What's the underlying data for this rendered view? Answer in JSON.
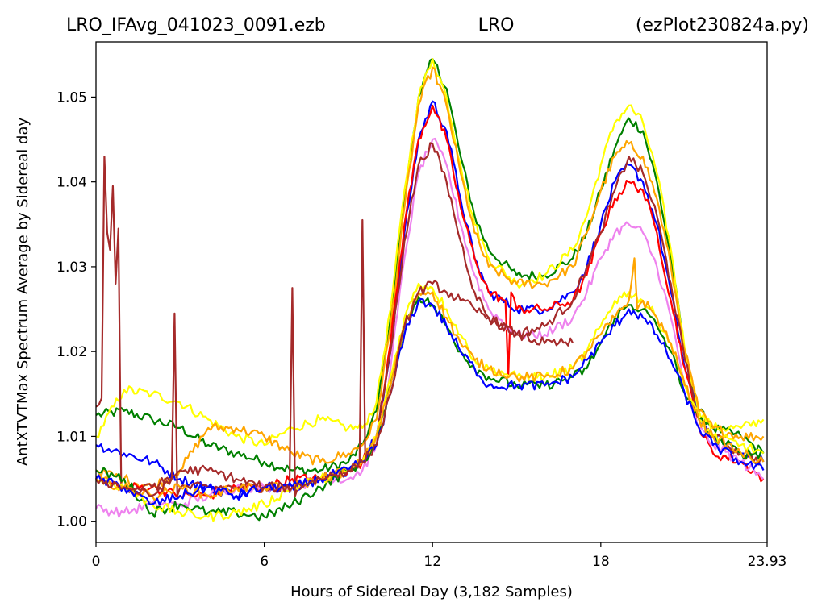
{
  "chart_data": {
    "type": "line",
    "title_left": "LRO_IFAvg_041023_0091.ezb",
    "title_center": "LRO",
    "title_right": "(ezPlot230824a.py)",
    "xlabel": "Hours of Sidereal Day  (3,182 Samples)",
    "ylabel": "AntXTVTMax Spectrum Average by Sidereal day",
    "xlim": [
      0,
      23.93
    ],
    "ylim": [
      0.9975,
      1.0565
    ],
    "xticks": [
      0,
      6,
      12,
      18,
      23.93
    ],
    "xtick_labels": [
      "0",
      "6",
      "12",
      "18",
      "23.93"
    ],
    "yticks": [
      1.0,
      1.01,
      1.02,
      1.03,
      1.04,
      1.05
    ],
    "ytick_labels": [
      "1.00",
      "1.01",
      "1.02",
      "1.03",
      "1.04",
      "1.05"
    ],
    "grid": false,
    "series": [
      {
        "color": "#008000",
        "x": [
          0,
          1,
          2,
          3,
          4,
          5,
          6,
          7,
          8,
          9,
          9.5,
          10,
          10.5,
          11,
          11.5,
          12,
          12.5,
          13,
          13.5,
          14,
          15,
          16,
          17,
          17.5,
          18,
          18.5,
          19,
          19.5,
          20,
          20.5,
          21,
          21.5,
          22,
          23,
          23.8
        ],
        "y": [
          1.0125,
          1.013,
          1.012,
          1.011,
          1.009,
          1.008,
          1.007,
          1.006,
          1.006,
          1.007,
          1.009,
          1.013,
          1.024,
          1.038,
          1.05,
          1.0545,
          1.051,
          1.043,
          1.036,
          1.032,
          1.029,
          1.029,
          1.031,
          1.034,
          1.039,
          1.044,
          1.0475,
          1.046,
          1.04,
          1.031,
          1.02,
          1.013,
          1.011,
          1.01,
          1.008
        ]
      },
      {
        "color": "#ffff00",
        "x": [
          0,
          1,
          2,
          3,
          4,
          5,
          6,
          7,
          8,
          9,
          9.5,
          10,
          10.5,
          11,
          11.5,
          12,
          12.5,
          13,
          13.5,
          14,
          15,
          16,
          17,
          17.5,
          18,
          18.5,
          19,
          19.5,
          20,
          20.5,
          21,
          21.5,
          22,
          23,
          23.8
        ],
        "y": [
          1.01,
          1.0155,
          1.015,
          1.014,
          1.012,
          1.01,
          1.009,
          1.011,
          1.012,
          1.011,
          1.011,
          1.014,
          1.025,
          1.039,
          1.05,
          1.0545,
          1.05,
          1.042,
          1.035,
          1.031,
          1.028,
          1.029,
          1.032,
          1.036,
          1.042,
          1.047,
          1.049,
          1.047,
          1.041,
          1.032,
          1.02,
          1.013,
          1.011,
          1.011,
          1.012
        ]
      },
      {
        "color": "#ffa500",
        "x": [
          0,
          1,
          2,
          3,
          4,
          5,
          6,
          7,
          8,
          9,
          9.5,
          10,
          10.5,
          11,
          11.5,
          12,
          12.5,
          13,
          13.5,
          14,
          15,
          16,
          17,
          17.5,
          18,
          18.5,
          19,
          19.5,
          20,
          20.5,
          21,
          21.5,
          22,
          23,
          23.8
        ],
        "y": [
          1.006,
          1.005,
          1.004,
          1.006,
          1.011,
          1.011,
          1.01,
          1.008,
          1.007,
          1.008,
          1.009,
          1.012,
          1.023,
          1.037,
          1.049,
          1.0535,
          1.049,
          1.041,
          1.034,
          1.03,
          1.028,
          1.028,
          1.03,
          1.034,
          1.039,
          1.043,
          1.0445,
          1.043,
          1.038,
          1.03,
          1.02,
          1.013,
          1.011,
          1.01,
          1.01
        ]
      },
      {
        "color": "#0000ff",
        "x": [
          0,
          1,
          2,
          3,
          4,
          5,
          6,
          7,
          8,
          9,
          9.5,
          10,
          10.5,
          11,
          11.5,
          12,
          12.5,
          13,
          13.5,
          14,
          15,
          16,
          17,
          17.5,
          18,
          18.5,
          19,
          19.5,
          20,
          20.5,
          21,
          21.5,
          22,
          23,
          23.8
        ],
        "y": [
          1.009,
          1.008,
          1.007,
          1.005,
          1.004,
          1.003,
          1.004,
          1.004,
          1.005,
          1.006,
          1.007,
          1.01,
          1.02,
          1.034,
          1.045,
          1.0495,
          1.046,
          1.038,
          1.031,
          1.027,
          1.025,
          1.025,
          1.027,
          1.03,
          1.035,
          1.04,
          1.042,
          1.04,
          1.035,
          1.027,
          1.018,
          1.012,
          1.01,
          1.008,
          1.007
        ]
      },
      {
        "color": "#ff0000",
        "x": [
          0,
          1,
          2,
          3,
          4,
          5,
          6,
          7,
          8,
          9,
          9.5,
          10,
          10.5,
          11,
          11.5,
          12,
          12.5,
          13,
          13.5,
          14,
          14.6,
          14.7,
          14.8,
          15,
          16,
          17,
          17.5,
          18,
          18.5,
          19,
          19.5,
          20,
          20.5,
          21,
          21.5,
          22,
          23,
          23.8
        ],
        "y": [
          1.005,
          1.004,
          1.004,
          1.003,
          1.003,
          1.004,
          1.004,
          1.005,
          1.005,
          1.006,
          1.007,
          1.01,
          1.021,
          1.035,
          1.045,
          1.049,
          1.045,
          1.037,
          1.031,
          1.027,
          1.026,
          1.017,
          1.027,
          1.025,
          1.025,
          1.026,
          1.029,
          1.034,
          1.038,
          1.04,
          1.039,
          1.034,
          1.026,
          1.018,
          1.011,
          1.008,
          1.007,
          1.005
        ]
      },
      {
        "color": "#ee82ee",
        "x": [
          0,
          1,
          2,
          3,
          4,
          5,
          6,
          7,
          8,
          9,
          9.5,
          10,
          10.5,
          11,
          11.5,
          12,
          12.5,
          13,
          13.5,
          14,
          15,
          16,
          17,
          17.5,
          18,
          18.5,
          19,
          19.5,
          20,
          20.5,
          21,
          21.5,
          22,
          23,
          23.8
        ],
        "y": [
          1.0015,
          1.001,
          1.002,
          1.002,
          1.003,
          1.004,
          1.004,
          1.004,
          1.005,
          1.005,
          1.006,
          1.009,
          1.018,
          1.031,
          1.041,
          1.045,
          1.042,
          1.035,
          1.029,
          1.025,
          1.022,
          1.022,
          1.024,
          1.027,
          1.031,
          1.034,
          1.035,
          1.034,
          1.03,
          1.024,
          1.016,
          1.011,
          1.009,
          1.007,
          1.005
        ]
      },
      {
        "color": "#a52a2a",
        "x": [
          0,
          0.2,
          0.3,
          0.4,
          0.5,
          0.6,
          0.7,
          0.8,
          0.9,
          1.0,
          1.1,
          2,
          2.7,
          2.8,
          2.9,
          3,
          4,
          5,
          6,
          6.9,
          7.0,
          7.1,
          7.2,
          8,
          9,
          9.4,
          9.5,
          9.6,
          10,
          10.5,
          11,
          11.5,
          12,
          12.5,
          13,
          13.5,
          14,
          15,
          16,
          17,
          17.5,
          18,
          18.5,
          19,
          19.5,
          20,
          20.5,
          21,
          21.5,
          22,
          23,
          23.8
        ],
        "y": [
          1.0135,
          1.0145,
          1.043,
          1.034,
          1.032,
          1.0395,
          1.028,
          1.0345,
          1.004,
          1.004,
          1.004,
          1.004,
          1.005,
          1.0245,
          1.003,
          1.004,
          1.004,
          1.004,
          1.004,
          1.004,
          1.0275,
          1.003,
          1.004,
          1.005,
          1.006,
          1.007,
          1.0355,
          1.007,
          1.01,
          1.02,
          1.033,
          1.042,
          1.0445,
          1.04,
          1.033,
          1.027,
          1.024,
          1.022,
          1.023,
          1.026,
          1.03,
          1.034,
          1.039,
          1.043,
          1.041,
          1.036,
          1.028,
          1.019,
          1.012,
          1.01,
          1.008,
          1.007
        ]
      },
      {
        "color": "#008000",
        "x": [
          0,
          1,
          2,
          3,
          4,
          5,
          6,
          7,
          8,
          9,
          9.5,
          10,
          10.5,
          11,
          11.5,
          12,
          12.5,
          13,
          13.5,
          14,
          15,
          16,
          17,
          17.5,
          18,
          18.5,
          19,
          19.5,
          20,
          20.5,
          21,
          21.5,
          22,
          23,
          23.8
        ],
        "y": [
          1.006,
          1.005,
          1.001,
          1.002,
          1.001,
          1.001,
          1.0005,
          1.002,
          1.004,
          1.006,
          1.007,
          1.009,
          1.016,
          1.023,
          1.0265,
          1.0255,
          1.023,
          1.02,
          1.018,
          1.017,
          1.016,
          1.016,
          1.017,
          1.018,
          1.021,
          1.024,
          1.0255,
          1.025,
          1.023,
          1.02,
          1.015,
          1.012,
          1.01,
          1.008,
          1.008
        ]
      },
      {
        "color": "#ffff00",
        "x": [
          0,
          1,
          2,
          3,
          4,
          5,
          6,
          7,
          8,
          9,
          9.5,
          10,
          10.5,
          11,
          11.5,
          12,
          12.5,
          13,
          13.5,
          14,
          15,
          16,
          17,
          17.5,
          18,
          18.5,
          19,
          19.5,
          20,
          20.5,
          21,
          21.5,
          22,
          23,
          23.8
        ],
        "y": [
          1.005,
          1.004,
          1.002,
          1.001,
          1.0005,
          1.001,
          1.002,
          1.004,
          1.005,
          1.006,
          1.007,
          1.01,
          1.017,
          1.024,
          1.028,
          1.0275,
          1.025,
          1.022,
          1.019,
          1.018,
          1.017,
          1.017,
          1.018,
          1.02,
          1.023,
          1.026,
          1.027,
          1.026,
          1.024,
          1.021,
          1.016,
          1.012,
          1.01,
          1.009,
          1.008
        ]
      },
      {
        "color": "#ffa500",
        "x": [
          0,
          1,
          2,
          3,
          4,
          5,
          6,
          7,
          8,
          9,
          9.5,
          10,
          10.5,
          11,
          11.5,
          12,
          12.5,
          13,
          13.5,
          14,
          15,
          16,
          17,
          17.5,
          18,
          18.5,
          19,
          19.2,
          19.3,
          19.5,
          20,
          20.5,
          21,
          21.5,
          22,
          23,
          23.8
        ],
        "y": [
          1.005,
          1.004,
          1.003,
          1.004,
          1.003,
          1.004,
          1.004,
          1.004,
          1.005,
          1.006,
          1.007,
          1.01,
          1.016,
          1.023,
          1.027,
          1.027,
          1.024,
          1.021,
          1.019,
          1.018,
          1.017,
          1.017,
          1.018,
          1.02,
          1.022,
          1.024,
          1.026,
          1.031,
          1.025,
          1.026,
          1.024,
          1.021,
          1.016,
          1.012,
          1.01,
          1.008,
          1.007
        ]
      },
      {
        "color": "#0000ff",
        "x": [
          0,
          1,
          2,
          3,
          4,
          5,
          6,
          7,
          8,
          9,
          9.5,
          10,
          10.5,
          11,
          11.5,
          12,
          12.5,
          13,
          13.5,
          14,
          15,
          16,
          17,
          17.5,
          18,
          18.5,
          19,
          19.5,
          20,
          20.5,
          21,
          21.5,
          22,
          23,
          23.8
        ],
        "y": [
          1.005,
          1.004,
          1.002,
          1.003,
          1.004,
          1.003,
          1.004,
          1.004,
          1.005,
          1.006,
          1.007,
          1.009,
          1.015,
          1.022,
          1.026,
          1.0255,
          1.023,
          1.02,
          1.018,
          1.016,
          1.016,
          1.016,
          1.017,
          1.019,
          1.021,
          1.023,
          1.025,
          1.024,
          1.022,
          1.019,
          1.015,
          1.011,
          1.009,
          1.007,
          1.006
        ]
      },
      {
        "color": "#a52a2a",
        "x": [
          0,
          1,
          2,
          3,
          4,
          5,
          6,
          7,
          8,
          9,
          9.5,
          10,
          10.5,
          11,
          11.5,
          12,
          12.5,
          13,
          13.5,
          14,
          15,
          16,
          16.5,
          17
        ],
        "y": [
          1.005,
          1.004,
          1.003,
          1.006,
          1.006,
          1.005,
          1.004,
          1.004,
          1.005,
          1.006,
          1.007,
          1.009,
          1.015,
          1.023,
          1.027,
          1.028,
          1.027,
          1.026,
          1.025,
          1.024,
          1.022,
          1.021,
          1.021,
          1.021
        ]
      }
    ]
  }
}
